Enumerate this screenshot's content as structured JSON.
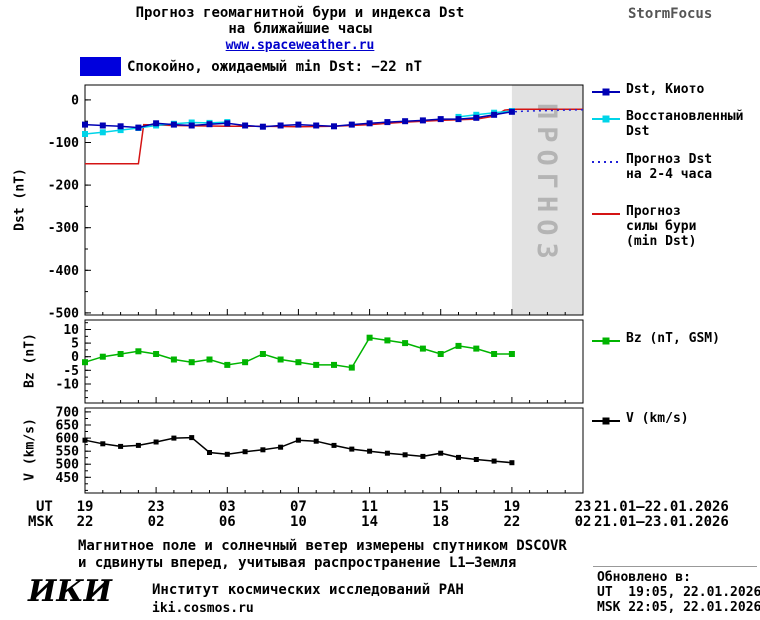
{
  "header": {
    "title_line1": "Прогноз геомагнитной бури и индекса Dst",
    "title_line2": "на ближайшие часы",
    "site_link": "www.spaceweather.ru",
    "brand": "StormFocus"
  },
  "status_banner": {
    "box_color": "#0000dd",
    "text": "Спокойно, ожидаемый min Dst: −22 nT"
  },
  "forecast_watermark": "ПРОГНОЗ",
  "chart_data": [
    {
      "type": "line",
      "ylabel": "Dst (nT)",
      "ylim": [
        -505,
        35
      ],
      "yticks": [
        0,
        -100,
        -200,
        -300,
        -400,
        -500
      ],
      "xlim_hours": [
        0,
        28
      ],
      "forecast_region": [
        24,
        28
      ],
      "series": [
        {
          "key": "dst-kyoto",
          "name": "Dst, Киото",
          "color": "#0000b4",
          "style": "solid",
          "marker": true,
          "marker_size": 6,
          "x": [
            0,
            1,
            2,
            3,
            4,
            5,
            6,
            7,
            8,
            9,
            10,
            11,
            12,
            13,
            14,
            15,
            16,
            17,
            18,
            19,
            20,
            21,
            22,
            23,
            24
          ],
          "values": [
            -58,
            -60,
            -62,
            -65,
            -55,
            -58,
            -60,
            -57,
            -55,
            -60,
            -63,
            -60,
            -58,
            -60,
            -62,
            -58,
            -55,
            -52,
            -50,
            -48,
            -45,
            -45,
            -42,
            -35,
            -28
          ]
        },
        {
          "key": "dst-restored",
          "name": "Восстановленный Dst",
          "color": "#00d4e8",
          "style": "solid",
          "marker": true,
          "marker_size": 6,
          "gap_break": true,
          "x": [
            0,
            1,
            2,
            3,
            4,
            5,
            6,
            7,
            8,
            21,
            22,
            23,
            24
          ],
          "values": [
            -80,
            -76,
            -71,
            -66,
            -60,
            -56,
            -53,
            -54,
            -52,
            -40,
            -35,
            -30,
            -26
          ]
        },
        {
          "key": "dst-forecast",
          "name": "Прогноз Dst на 2-4 часа",
          "color": "#2020d8",
          "style": "dotted",
          "marker": false,
          "x": [
            23.5,
            24,
            25,
            26,
            27,
            28
          ],
          "values": [
            -30,
            -28,
            -26,
            -25,
            -24,
            -23
          ]
        },
        {
          "key": "storm-forecast",
          "name": "Прогноз силы бури (min Dst)",
          "color": "#d41414",
          "style": "solid",
          "marker": false,
          "x": [
            0,
            3,
            3.3,
            5,
            8,
            10,
            12,
            14,
            16,
            18,
            20,
            22,
            23,
            23.6,
            24,
            28
          ],
          "values": [
            -150,
            -150,
            -58,
            -60,
            -62,
            -62,
            -63,
            -62,
            -58,
            -52,
            -48,
            -45,
            -38,
            -24,
            -22,
            -22
          ]
        }
      ]
    },
    {
      "type": "line",
      "ylabel": "Bz (nT)",
      "ylim": [
        -17,
        13.5
      ],
      "yticks": [
        10,
        5,
        0,
        -5,
        -10
      ],
      "xlim_hours": [
        0,
        28
      ],
      "series": [
        {
          "key": "bz",
          "name": "Bz (nT, GSM)",
          "color": "#00b400",
          "style": "solid",
          "marker": true,
          "marker_size": 6,
          "x": [
            0,
            1,
            2,
            3,
            4,
            5,
            6,
            7,
            8,
            9,
            10,
            11,
            12,
            13,
            14,
            15,
            16,
            17,
            18,
            19,
            20,
            21,
            22,
            23,
            24
          ],
          "values": [
            -2,
            0,
            1,
            2,
            1,
            -1,
            -2,
            -1,
            -3,
            -2,
            1,
            -1,
            -2,
            -3,
            -3,
            -4,
            7,
            6,
            5,
            3,
            1,
            4,
            3,
            1,
            1
          ]
        }
      ]
    },
    {
      "type": "line",
      "ylabel": "V (km/s)",
      "ylim": [
        390,
        715
      ],
      "yticks": [
        700,
        650,
        600,
        550,
        500,
        450
      ],
      "xlim_hours": [
        0,
        28
      ],
      "series": [
        {
          "key": "v",
          "name": "V (km/s)",
          "color": "#000000",
          "style": "solid",
          "marker": true,
          "marker_size": 5,
          "x": [
            0,
            1,
            2,
            3,
            4,
            5,
            6,
            7,
            8,
            9,
            10,
            11,
            12,
            13,
            14,
            15,
            16,
            17,
            18,
            19,
            20,
            21,
            22,
            23,
            24
          ],
          "values": [
            592,
            578,
            568,
            572,
            585,
            600,
            602,
            545,
            538,
            548,
            555,
            565,
            592,
            588,
            572,
            558,
            550,
            542,
            536,
            530,
            542,
            526,
            518,
            512,
            506
          ]
        }
      ]
    }
  ],
  "xaxis": {
    "ut_label": "UT",
    "msk_label": "MSK",
    "ticks": [
      {
        "hour": 0,
        "ut": "19",
        "msk": "22"
      },
      {
        "hour": 4,
        "ut": "23",
        "msk": "02"
      },
      {
        "hour": 8,
        "ut": "03",
        "msk": "06"
      },
      {
        "hour": 12,
        "ut": "07",
        "msk": "10"
      },
      {
        "hour": 16,
        "ut": "11",
        "msk": "14"
      },
      {
        "hour": 20,
        "ut": "15",
        "msk": "18"
      },
      {
        "hour": 24,
        "ut": "19",
        "msk": "22"
      },
      {
        "hour": 28,
        "ut": "23",
        "msk": "02"
      }
    ],
    "ut_daterange": "21.01—22.01.2026",
    "msk_daterange": "21.01—23.01.2026"
  },
  "legend_entries": [
    {
      "key": "dst-kyoto",
      "label": "Dst, Киото",
      "color": "#0000b4",
      "style": "solid",
      "marker": true
    },
    {
      "key": "dst-restored",
      "label": "Восстановленный\nDst",
      "color": "#00d4e8",
      "style": "solid",
      "marker": true
    },
    {
      "key": "dst-forecast",
      "label": "Прогноз Dst\nна 2-4 часа",
      "color": "#2020d8",
      "style": "dotted",
      "marker": false
    },
    {
      "key": "storm-forecast",
      "label": "Прогноз\nсилы бури\n(min Dst)",
      "color": "#d41414",
      "style": "solid",
      "marker": false
    },
    {
      "key": "bz",
      "label": "Bz (nT, GSM)",
      "color": "#00b400",
      "style": "solid",
      "marker": true
    },
    {
      "key": "v",
      "label": "V (km/s)",
      "color": "#000000",
      "style": "solid",
      "marker": true
    }
  ],
  "notes": {
    "line1": "Магнитное поле и солнечный ветер измерены спутником DSCOVR",
    "line2": "и сдвинуты вперед, учитывая распространение L1—Земля"
  },
  "updated": {
    "label": "Обновлено в:",
    "ut": "UT  19:05, 22.01.2026",
    "msk": "MSK 22:05, 22.01.2026"
  },
  "footer": {
    "logo": "ИКИ",
    "institute": "Институт космических исследований РАН",
    "site": "iki.cosmos.ru"
  }
}
